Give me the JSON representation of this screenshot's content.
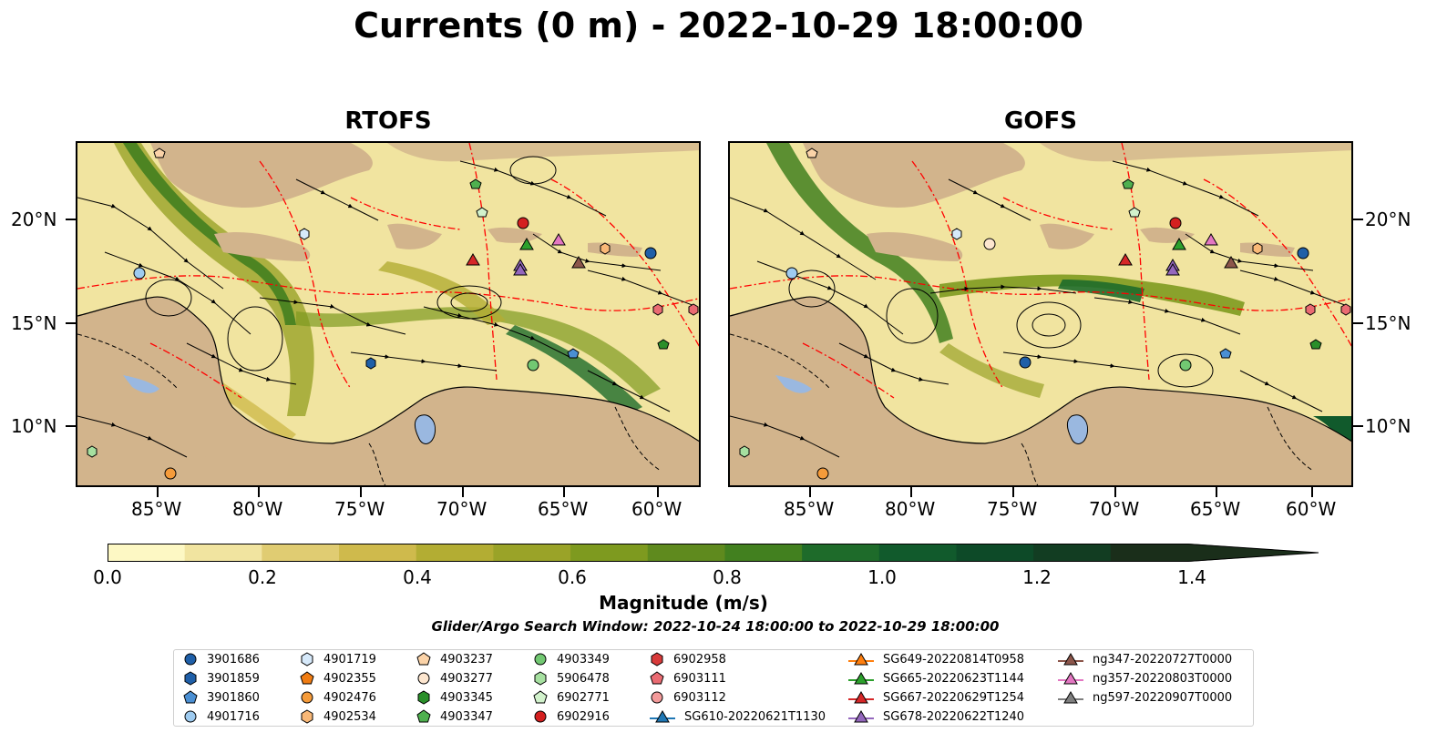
{
  "title": "Currents (0 m) - 2022-10-29 18:00:00",
  "panels": {
    "left_title": "RTOFS",
    "right_title": "GOFS"
  },
  "axes": {
    "lon_labels": [
      "85°W",
      "80°W",
      "75°W",
      "70°W",
      "65°W",
      "60°W"
    ],
    "lat_labels": [
      "20°N",
      "15°N",
      "10°N"
    ]
  },
  "colorbar": {
    "label": "Magnitude (m/s)",
    "ticks": [
      "0.0",
      "0.2",
      "0.4",
      "0.6",
      "0.8",
      "1.0",
      "1.2",
      "1.4"
    ],
    "colors": [
      "#fdf8c4",
      "#f1e4a0",
      "#e0cc72",
      "#cfba4c",
      "#b3ad33",
      "#9aa328",
      "#7e9a1f",
      "#5f8a1e",
      "#42801f",
      "#1e6b2a",
      "#115a2c",
      "#0d4a28",
      "#123d22",
      "#1a2e1a"
    ]
  },
  "search_window": "Glider/Argo Search Window: 2022-10-24 18:00:00 to 2022-10-29 18:00:00",
  "legend": {
    "columns": [
      [
        {
          "label": "3901686",
          "marker": "circle",
          "color": "#1f5fa8"
        },
        {
          "label": "3901859",
          "marker": "hexagon",
          "color": "#1f5fa8"
        },
        {
          "label": "3901860",
          "marker": "pentagon",
          "color": "#4a8fd3"
        },
        {
          "label": "4901716",
          "marker": "circle",
          "color": "#9ecbf0"
        }
      ],
      [
        {
          "label": "4901719",
          "marker": "hexagon",
          "color": "#d6e9fa"
        },
        {
          "label": "4902355",
          "marker": "pentagon",
          "color": "#f07c12"
        },
        {
          "label": "4902476",
          "marker": "circle",
          "color": "#f59b3a"
        },
        {
          "label": "4902534",
          "marker": "hexagon",
          "color": "#f9b877"
        }
      ],
      [
        {
          "label": "4903237",
          "marker": "pentagon",
          "color": "#fbd3a8"
        },
        {
          "label": "4903277",
          "marker": "circle",
          "color": "#fde6cf"
        },
        {
          "label": "4903345",
          "marker": "hexagon",
          "color": "#2a8f2a"
        },
        {
          "label": "4903347",
          "marker": "pentagon",
          "color": "#4fb04f"
        }
      ],
      [
        {
          "label": "4903349",
          "marker": "circle",
          "color": "#72c872"
        },
        {
          "label": "5906478",
          "marker": "hexagon",
          "color": "#a6e0a0"
        },
        {
          "label": "6902771",
          "marker": "pentagon",
          "color": "#d2f2cc"
        },
        {
          "label": "6902916",
          "marker": "circle",
          "color": "#d42020"
        }
      ],
      [
        {
          "label": "6902958",
          "marker": "hexagon",
          "color": "#d83a3a"
        },
        {
          "label": "6903111",
          "marker": "pentagon",
          "color": "#ea6b72"
        },
        {
          "label": "6903112",
          "marker": "circle",
          "color": "#f39a9a"
        },
        {
          "label": "SG610-20220621T1130",
          "marker": "triangle-line",
          "color": "#1f77b4"
        }
      ],
      [
        {
          "label": "SG649-20220814T0958",
          "marker": "triangle-line",
          "color": "#ff7f0e"
        },
        {
          "label": "SG665-20220623T1144",
          "marker": "triangle-line",
          "color": "#2ca02c"
        },
        {
          "label": "SG667-20220629T1254",
          "marker": "triangle-line",
          "color": "#d62728"
        },
        {
          "label": "SG678-20220622T1240",
          "marker": "triangle-line",
          "color": "#9467bd"
        }
      ],
      [
        {
          "label": "ng347-20220727T0000",
          "marker": "triangle-line",
          "color": "#8c564b"
        },
        {
          "label": "ng357-20220803T0000",
          "marker": "triangle-line",
          "color": "#e377c2"
        },
        {
          "label": "ng597-20220907T0000",
          "marker": "triangle-line",
          "color": "#7f7f7f"
        }
      ]
    ]
  },
  "colors": {
    "land": "#d2b48c",
    "water_lake": "#9ab8e0",
    "eez_line": "#ff0000"
  }
}
